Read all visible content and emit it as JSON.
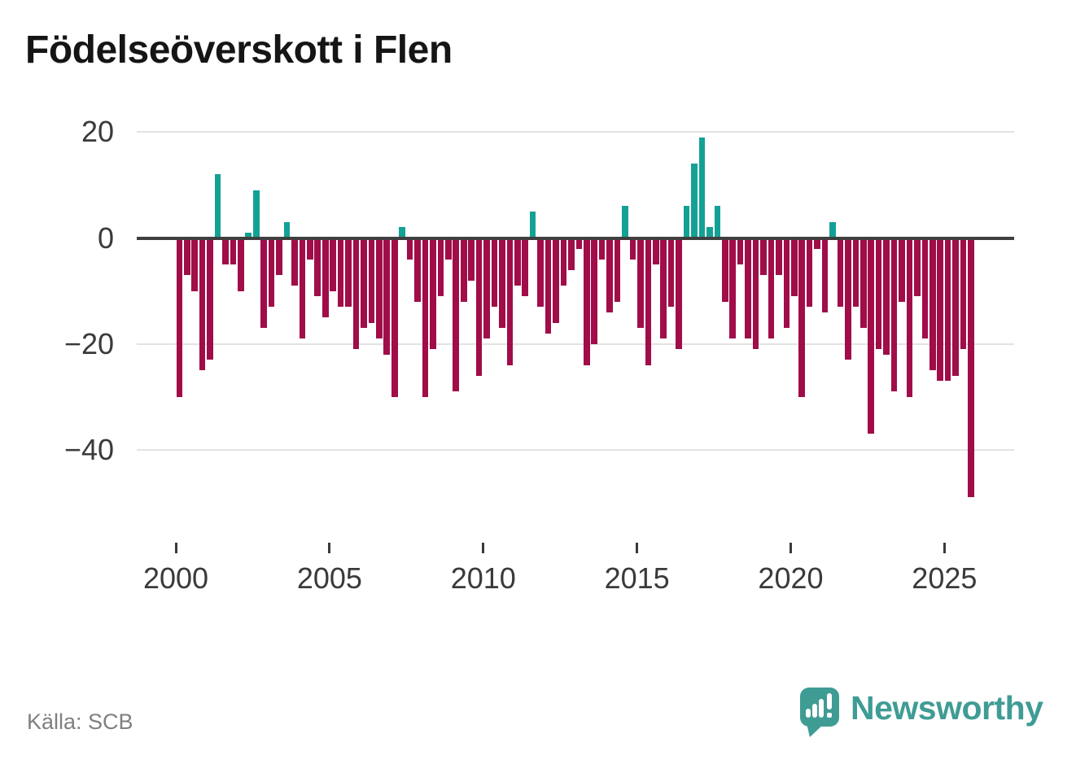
{
  "title": "Födelseöverskott i Flen",
  "source": "Källa: SCB",
  "branding": {
    "name": "Newsworthy"
  },
  "chart_data": {
    "type": "bar",
    "title": "Födelseöverskott i Flen",
    "frequency": "quarterly",
    "start": "2000-Q1",
    "end": "2025-Q4",
    "years": [
      {
        "year": 2000,
        "values": [
          -30,
          -7,
          -10,
          -25
        ]
      },
      {
        "year": 2001,
        "values": [
          -23,
          12,
          -5,
          -5
        ]
      },
      {
        "year": 2002,
        "values": [
          -10,
          1,
          9,
          -17
        ]
      },
      {
        "year": 2003,
        "values": [
          -13,
          -7,
          3,
          -9
        ]
      },
      {
        "year": 2004,
        "values": [
          -19,
          -4,
          -11,
          -15
        ]
      },
      {
        "year": 2005,
        "values": [
          -10,
          -13,
          -13,
          -21
        ]
      },
      {
        "year": 2006,
        "values": [
          -17,
          -16,
          -19,
          -22
        ]
      },
      {
        "year": 2007,
        "values": [
          -30,
          2,
          -4,
          -12
        ]
      },
      {
        "year": 2008,
        "values": [
          -30,
          -21,
          -11,
          -4
        ]
      },
      {
        "year": 2009,
        "values": [
          -29,
          -12,
          -8,
          -26
        ]
      },
      {
        "year": 2010,
        "values": [
          -19,
          -13,
          -17,
          -24
        ]
      },
      {
        "year": 2011,
        "values": [
          -9,
          -11,
          5,
          -13
        ]
      },
      {
        "year": 2012,
        "values": [
          -18,
          -16,
          -9,
          -6
        ]
      },
      {
        "year": 2013,
        "values": [
          -2,
          -24,
          -20,
          -4
        ]
      },
      {
        "year": 2014,
        "values": [
          -14,
          -12,
          6,
          -4
        ]
      },
      {
        "year": 2015,
        "values": [
          -17,
          -24,
          -5,
          -19
        ]
      },
      {
        "year": 2016,
        "values": [
          -13,
          -21,
          6,
          14
        ]
      },
      {
        "year": 2017,
        "values": [
          19,
          2,
          6,
          -12
        ]
      },
      {
        "year": 2018,
        "values": [
          -19,
          -5,
          -19,
          -21
        ]
      },
      {
        "year": 2019,
        "values": [
          -7,
          -19,
          -7,
          -17
        ]
      },
      {
        "year": 2020,
        "values": [
          -11,
          -30,
          -13,
          -2
        ]
      },
      {
        "year": 2021,
        "values": [
          -14,
          3,
          -13,
          -23
        ]
      },
      {
        "year": 2022,
        "values": [
          -13,
          -17,
          -37,
          -21
        ]
      },
      {
        "year": 2023,
        "values": [
          -22,
          -29,
          -12,
          -30
        ]
      },
      {
        "year": 2024,
        "values": [
          -11,
          -19,
          -25,
          -27
        ]
      },
      {
        "year": 2025,
        "values": [
          -27,
          -26,
          -21,
          -49
        ]
      }
    ],
    "x_tick_labels": [
      "2000",
      "2005",
      "2010",
      "2015",
      "2020",
      "2025"
    ],
    "y_tick_values": [
      20,
      0,
      -20,
      -40
    ],
    "y_tick_labels": [
      "20",
      "0",
      "−20",
      "−40"
    ],
    "ylim": [
      -52,
      22
    ],
    "grid": true,
    "legend": false,
    "colors": {
      "positive": "#14a195",
      "negative": "#a00d49",
      "zero_axis": "#3f3f3f",
      "gridline": "#e3e3e3",
      "brand_teal": "#3f9c94"
    }
  }
}
